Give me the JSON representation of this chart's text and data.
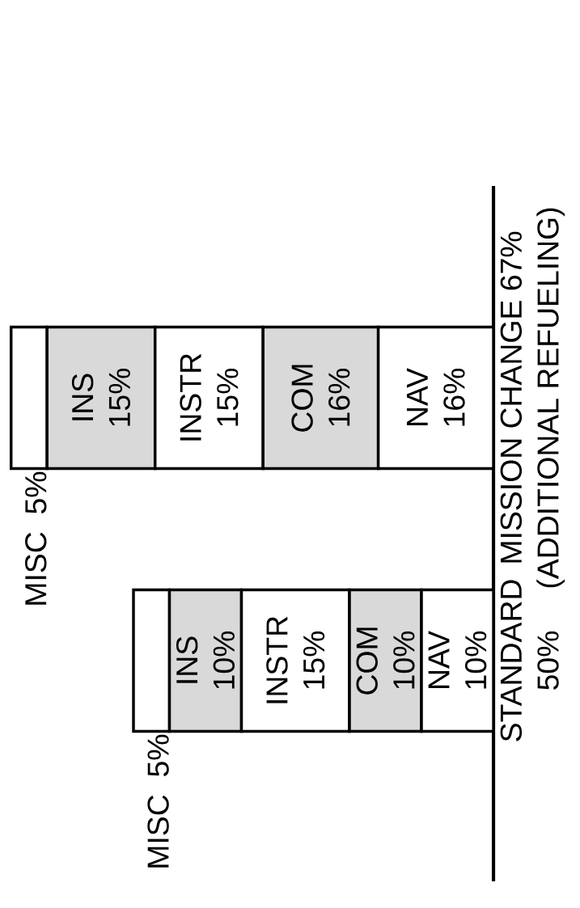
{
  "chart_data": {
    "type": "bar",
    "stacked": true,
    "orientation": "horizontal",
    "categories": [
      "MISSION CHANGE 67% (ADDITIONAL REFUELING)",
      "STANDARD 50%"
    ],
    "series": [
      {
        "name": "NAV",
        "color": "#ffffff",
        "values": [
          16,
          10
        ],
        "value_labels": [
          "16%",
          "10%"
        ]
      },
      {
        "name": "COM",
        "color": "#d9d9d9",
        "values": [
          16,
          10
        ],
        "value_labels": [
          "16%",
          "10%"
        ]
      },
      {
        "name": "INSTR",
        "color": "#ffffff",
        "values": [
          15,
          15
        ],
        "value_labels": [
          "15%",
          "15%"
        ]
      },
      {
        "name": "INS",
        "color": "#d9d9d9",
        "values": [
          15,
          10
        ],
        "value_labels": [
          "15%",
          "10%"
        ]
      },
      {
        "name": "MISC",
        "color": "#ffffff",
        "values": [
          5,
          5
        ],
        "value_labels": [
          "5%",
          "5%"
        ]
      }
    ]
  }
}
